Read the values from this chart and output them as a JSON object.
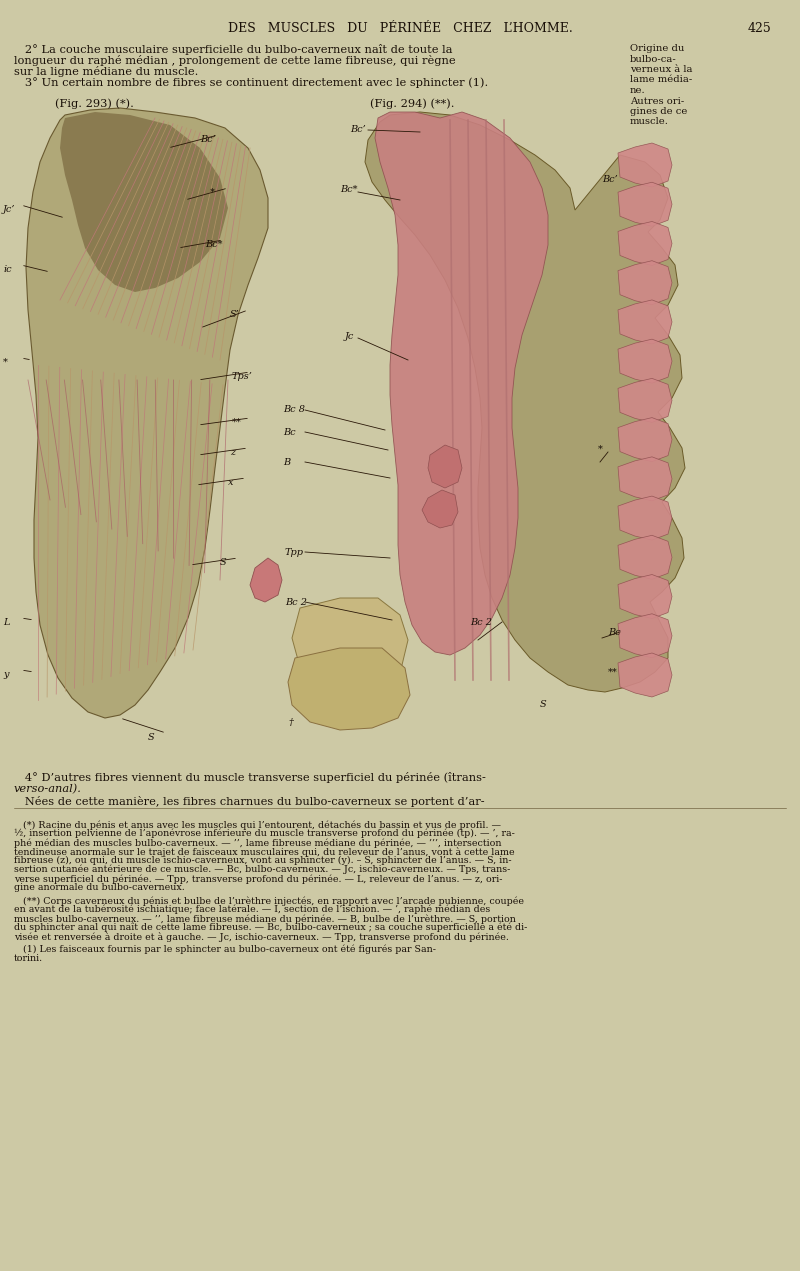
{
  "bg_color": "#cdc9a5",
  "header_title": "DES   MUSCLES   DU   PÉRINÉE   CHEZ   L’HOMME.",
  "page_number": "425",
  "right_col": [
    "Origine du",
    "bulbo-ca-",
    "verneux à la",
    "lame média-",
    "ne.",
    "Autres ori-",
    "gines de ce",
    "muscle."
  ],
  "text_line1": "   2° La couche musculaire superficielle du bulbo-caverneux naît de toute la",
  "text_line2": "longueur du raphé médian , prolongement de cette lame fibreuse, qui règne",
  "text_line3": "sur la ligne médiane du muscle.",
  "text_line4": "   3° Un certain nombre de fibres se continuent directement avec le sphincter (1).",
  "fig1_label": "(Fig. 293) (*).",
  "fig2_label": "(Fig. 294) (**).",
  "text_4a": "   4° D’autres fibres viennent du muscle transverse superficiel du périnée (îtrans-",
  "text_4b": "verso-anal).",
  "text_5": "   Nées de cette manière, les fibres charnues du bulbo-caverneux se portent d’ar-",
  "fn1": "   (*) Racine du pénis et anus avec les muscles qui l’entourent, détachés du bassin et vus de profil. —",
  "fn1b": "½, insertion pelvienne de l’aponévrose inférieure du muscle transverse profond du périnée (tp). — ’, ra-",
  "fn1c": "phé médian des muscles bulbo-caverneux. — ’’, lame fibreuse médiane du périnée, — ’’’, intersection",
  "fn1d": "tendineuse anormale sur le trajet de faisceaux musculaires qui, du releveur de l’anus, vont à cette lame",
  "fn1e": "fibreuse (z), ou qui, du muscle ischio-caverneux, vont au sphincter (y). – S, sphincter de l’anus. — S, in-",
  "fn1f": "sertion cutanée antérieure de ce muscle. — Bc, bulbo-caverneux. — Jc, ischio-caverneux. — Tps, trans-",
  "fn1g": "verse superficiel du périnée. — Tpp, transverse profond du périnée. — L, releveur de l’anus. — z, ori-",
  "fn1h": "gine anormale du bulbo-caverneux.",
  "fn2": "   (**) Corps caverneux du pénis et bulbe de l’urèthre injectés, en rapport avec l’arcade pubienne, coupée",
  "fn2b": "en avant de la tubérosité ischiatique; face latérale. — I, section de l’ischion. — ’, raphé médian des",
  "fn2c": "muscles bulbo-caverneux. — ’’, lame fibreuse médiane du périnée. — B, bulbe de l’urèthre. — S, portion",
  "fn2d": "du sphincter anal qui naît de cette lame fibreuse. — Bc, bulbo-caverneux ; sa couche superficielle a été di-",
  "fn2e": "visée et renversée à droite et à gauche. — Jc, ischio-caverneux. — Tpp, transverse profond du périnée.",
  "fn3a": "   (1) Les faisceaux fournis par le sphincter au bulbo-caverneux ont été figurés par San-",
  "fn3b": "torini.",
  "tan_light": "#c8bd90",
  "tan_medium": "#b8a870",
  "tan_dark": "#8a7a50",
  "pink_light": "#d49090",
  "pink_medium": "#c07878",
  "pink_dark": "#a05060",
  "olive": "#7a7845",
  "dark_brown": "#3a2808",
  "gray_green": "#8a9070",
  "text_color": "#1a1008"
}
